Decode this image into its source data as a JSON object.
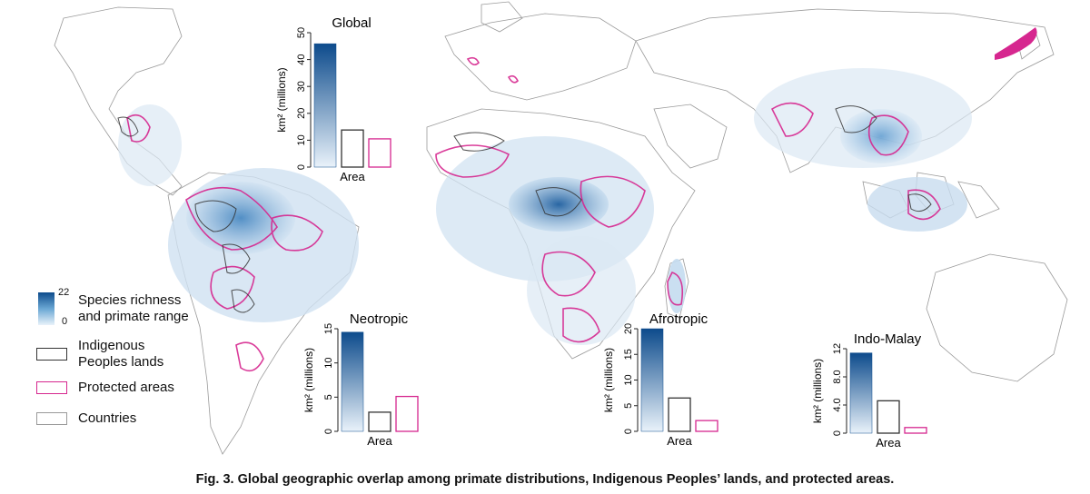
{
  "caption": "Fig. 3. Global geographic overlap among primate distributions, Indigenous Peoples’ lands, and protected areas.",
  "legend": {
    "richness": {
      "max": "22",
      "min": "0",
      "label_line1": "Species richness",
      "label_line2": "and primate range"
    },
    "indigenous": {
      "label_line1": "Indigenous",
      "label_line2": "Peoples lands"
    },
    "protected": {
      "label": "Protected areas"
    },
    "countries": {
      "label": "Countries"
    }
  },
  "colors": {
    "richness_dark": "#0d4b8c",
    "richness_light": "#e9f2fa",
    "indigenous": "#333333",
    "protected": "#d6278f",
    "countries": "#9a9a9a"
  },
  "chart_data": [
    {
      "type": "bar",
      "title": "Global",
      "ylabel": "km² (millions)",
      "xlabel": "Area",
      "categories": [
        "Primate range",
        "Indigenous Peoples lands",
        "Protected areas"
      ],
      "values": [
        45.9,
        13.8,
        10.5
      ],
      "ylim": [
        0,
        50
      ],
      "ticks": [
        "0",
        "10",
        "20",
        "30",
        "40",
        "50"
      ]
    },
    {
      "type": "bar",
      "title": "Neotropic",
      "ylabel": "km² (millions)",
      "xlabel": "Area",
      "categories": [
        "Primate range",
        "Indigenous Peoples lands",
        "Protected areas"
      ],
      "values": [
        14.5,
        2.8,
        5.1
      ],
      "ylim": [
        0,
        15
      ],
      "ticks": [
        "0",
        "5",
        "10",
        "15"
      ]
    },
    {
      "type": "bar",
      "title": "Afrotropic",
      "ylabel": "km² (millions)",
      "xlabel": "Area",
      "categories": [
        "Primate range",
        "Indigenous Peoples lands",
        "Protected areas"
      ],
      "values": [
        20,
        6.5,
        2.1
      ],
      "ylim": [
        0,
        20
      ],
      "ticks": [
        "0",
        "5",
        "10",
        "15",
        "20"
      ]
    },
    {
      "type": "bar",
      "title": "Indo-Malay",
      "ylabel": "km² (millions)",
      "xlabel": "Area",
      "categories": [
        "Primate range",
        "Indigenous Peoples lands",
        "Protected areas"
      ],
      "values": [
        11.4,
        4.6,
        0.8
      ],
      "ylim": [
        0,
        12
      ],
      "ticks": [
        "0",
        "4.0",
        "8.0",
        "12"
      ]
    }
  ]
}
